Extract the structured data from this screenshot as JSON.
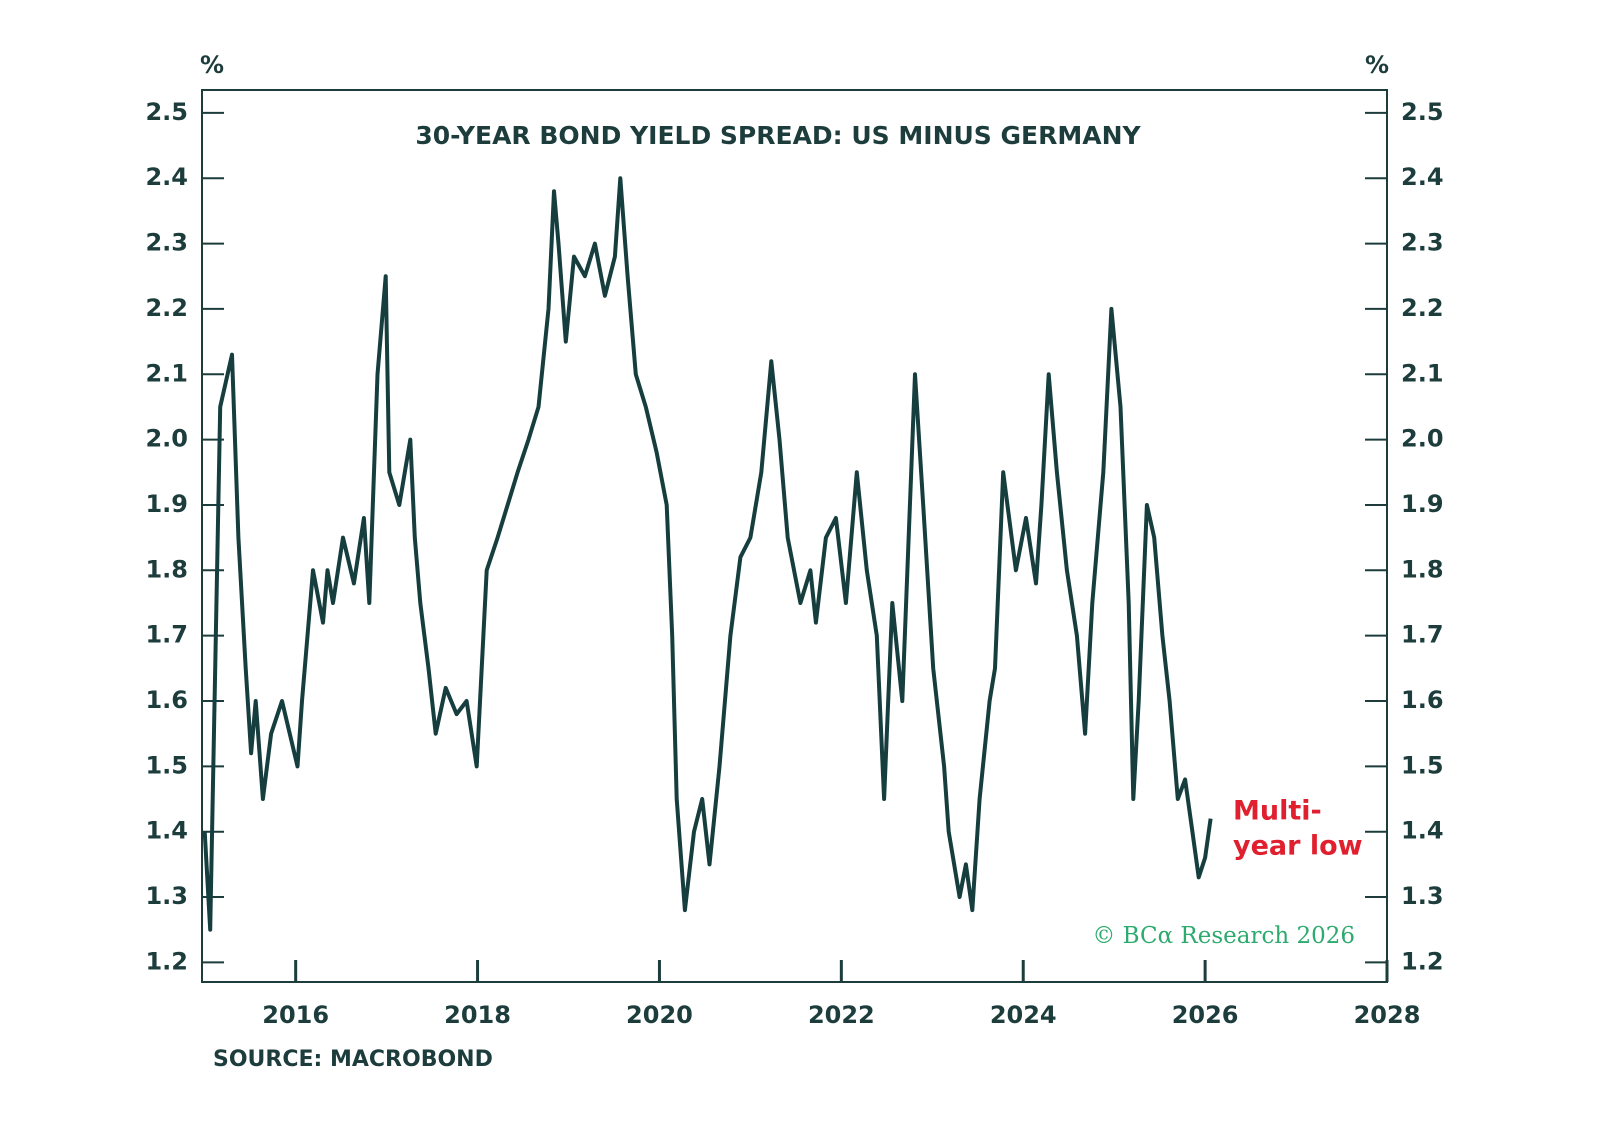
{
  "chart_data": {
    "type": "line",
    "title": "30-YEAR BOND YIELD SPREAD: US MINUS GERMANY",
    "ylabel": "%",
    "y2label": "%",
    "annotation": [
      "Multi-",
      "year low"
    ],
    "copyright": "© BCα Research 2026",
    "source": "SOURCE: MACROBOND",
    "xlim": [
      2014.97,
      2028
    ],
    "xticks": [
      2016,
      2018,
      2020,
      2022,
      2024,
      2026,
      2028
    ],
    "ylim": [
      1.17,
      2.535
    ],
    "yticks": [
      1.2,
      1.3,
      1.4,
      1.5,
      1.6,
      1.7,
      1.8,
      1.9,
      {
        "value": 2.0,
        "label": "2.0"
      },
      2.1,
      2.2,
      2.3,
      2.4,
      2.5
    ],
    "x": [
      2015.0,
      2015.06,
      2015.17,
      2015.3,
      2015.37,
      2015.45,
      2015.51,
      2015.56,
      2015.64,
      2015.73,
      2015.85,
      2016.02,
      2016.07,
      2016.19,
      2016.3,
      2016.35,
      2016.41,
      2016.52,
      2016.64,
      2016.75,
      2016.81,
      2016.9,
      2016.99,
      2017.03,
      2017.14,
      2017.26,
      2017.31,
      2017.37,
      2017.46,
      2017.54,
      2017.65,
      2017.77,
      2017.88,
      2017.99,
      2018.1,
      2018.22,
      2018.33,
      2018.44,
      2018.56,
      2018.67,
      2018.78,
      2018.84,
      2018.89,
      2018.97,
      2019.06,
      2019.18,
      2019.29,
      2019.4,
      2019.51,
      2019.57,
      2019.65,
      2019.74,
      2019.85,
      2019.97,
      2020.08,
      2020.14,
      2020.19,
      2020.28,
      2020.38,
      2020.47,
      2020.55,
      2020.66,
      2020.78,
      2020.89,
      2021.0,
      2021.12,
      2021.23,
      2021.32,
      2021.41,
      2021.55,
      2021.66,
      2021.72,
      2021.83,
      2021.94,
      2022.05,
      2022.17,
      2022.28,
      2022.39,
      2022.47,
      2022.56,
      2022.67,
      2022.81,
      2022.9,
      2023.01,
      2023.13,
      2023.18,
      2023.3,
      2023.37,
      2023.44,
      2023.52,
      2023.63,
      2023.69,
      2023.78,
      2023.92,
      2024.03,
      2024.14,
      2024.2,
      2024.28,
      2024.37,
      2024.48,
      2024.59,
      2024.68,
      2024.76,
      2024.88,
      2024.97,
      2025.07,
      2025.16,
      2025.21,
      2025.27,
      2025.36,
      2025.44,
      2025.53,
      2025.61,
      2025.7,
      2025.78,
      2025.86,
      2025.93,
      2026.0,
      2026.06
    ],
    "series": [
      {
        "color": "#173e3e",
        "values": [
          1.4,
          1.25,
          2.05,
          2.13,
          1.85,
          1.65,
          1.52,
          1.6,
          1.45,
          1.55,
          1.6,
          1.5,
          1.6,
          1.8,
          1.72,
          1.8,
          1.75,
          1.85,
          1.78,
          1.88,
          1.75,
          2.1,
          2.25,
          1.95,
          1.9,
          2.0,
          1.85,
          1.75,
          1.65,
          1.55,
          1.62,
          1.58,
          1.6,
          1.5,
          1.8,
          1.85,
          1.9,
          1.95,
          2.0,
          2.05,
          2.2,
          2.38,
          2.3,
          2.15,
          2.28,
          2.25,
          2.3,
          2.22,
          2.28,
          2.4,
          2.25,
          2.1,
          2.05,
          1.98,
          1.9,
          1.7,
          1.45,
          1.28,
          1.4,
          1.45,
          1.35,
          1.5,
          1.7,
          1.82,
          1.85,
          1.95,
          2.12,
          2.0,
          1.85,
          1.75,
          1.8,
          1.72,
          1.85,
          1.88,
          1.75,
          1.95,
          1.8,
          1.7,
          1.45,
          1.75,
          1.6,
          2.1,
          1.9,
          1.65,
          1.5,
          1.4,
          1.3,
          1.35,
          1.28,
          1.45,
          1.6,
          1.65,
          1.95,
          1.8,
          1.88,
          1.78,
          1.9,
          2.1,
          1.95,
          1.8,
          1.7,
          1.55,
          1.75,
          1.95,
          2.2,
          2.05,
          1.75,
          1.45,
          1.6,
          1.9,
          1.85,
          1.7,
          1.6,
          1.45,
          1.48,
          1.4,
          1.33,
          1.36,
          1.42
        ]
      }
    ]
  }
}
